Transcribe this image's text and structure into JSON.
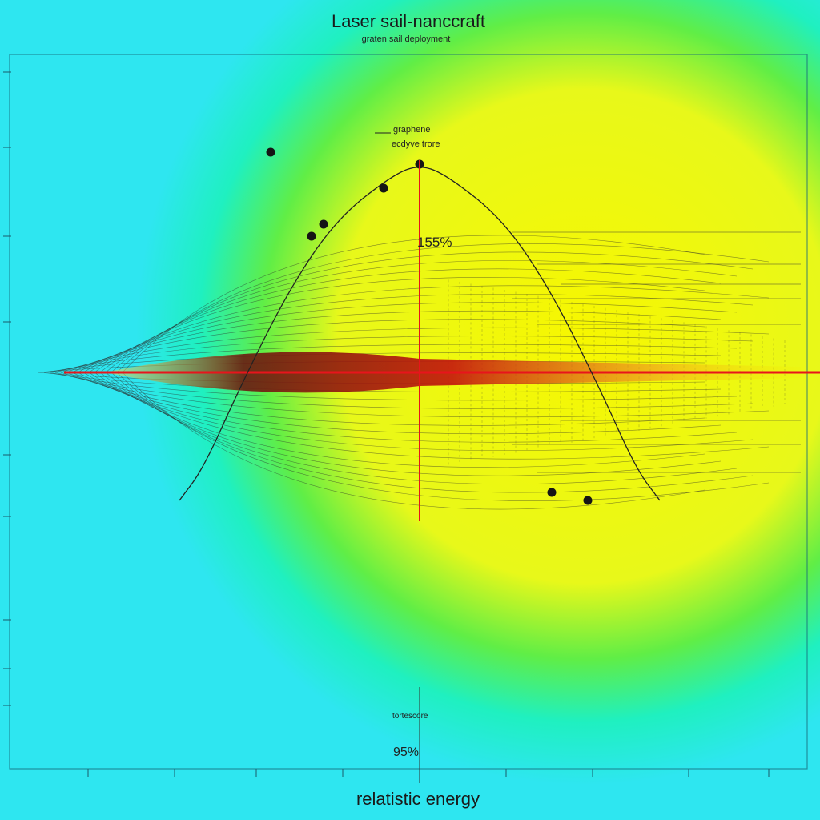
{
  "chart_data": {
    "type": "area",
    "title": "Laser sail-nanccraft",
    "subtitle": "graten sail deployment",
    "xlabel": "relatistic energy",
    "legend": {
      "line1": "graphene",
      "line2": "ecdyve trore"
    },
    "annotations": {
      "peak_label": "155%",
      "bottom_label": "tortescore",
      "bottom_value": "95%"
    },
    "peak_curve": {
      "name": "",
      "points": [
        [
          -1.0,
          -1.6
        ],
        [
          -0.9,
          -1.2
        ],
        [
          -0.75,
          -0.2
        ],
        [
          -0.55,
          1.0
        ],
        [
          -0.35,
          1.9
        ],
        [
          -0.12,
          2.45
        ],
        [
          0.0,
          2.6
        ],
        [
          0.12,
          2.45
        ],
        [
          0.35,
          1.9
        ],
        [
          0.55,
          1.0
        ],
        [
          0.75,
          -0.2
        ],
        [
          0.9,
          -1.2
        ],
        [
          1.0,
          -1.6
        ]
      ]
    },
    "markers": [
      [
        -0.62,
        2.75
      ],
      [
        -0.45,
        1.7
      ],
      [
        -0.4,
        1.85
      ],
      [
        -0.15,
        2.3
      ],
      [
        0.0,
        2.6
      ],
      [
        0.55,
        -1.5
      ],
      [
        0.7,
        -1.6
      ]
    ],
    "colors": {
      "background_outer": "#2ee6f0",
      "background_inner": "#f5f400",
      "background_mid": "#6cf060",
      "beam": "#e8141c",
      "beam_core": "#8a0a0a",
      "curve": "#222222"
    },
    "grid": false
  }
}
